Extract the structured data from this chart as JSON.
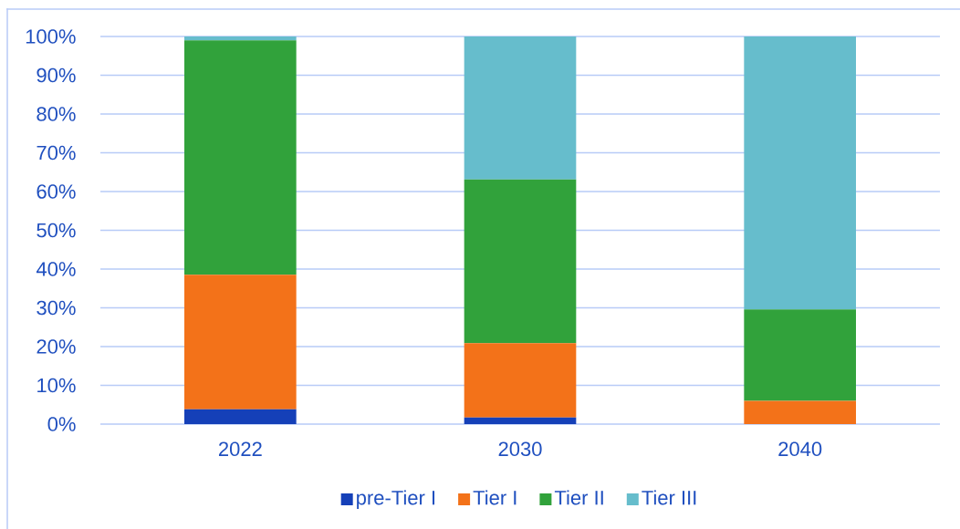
{
  "chart_data": {
    "type": "bar",
    "stacked": true,
    "categories": [
      "2022",
      "2030",
      "2040"
    ],
    "series": [
      {
        "name": "pre-Tier I",
        "color": "#1540b8",
        "values": [
          3.8,
          1.7,
          0
        ]
      },
      {
        "name": "Tier I",
        "color": "#f37219",
        "values": [
          34.7,
          19.2,
          6.0
        ]
      },
      {
        "name": "Tier II",
        "color": "#31a23b",
        "values": [
          60.5,
          42.2,
          23.6
        ]
      },
      {
        "name": "Tier III",
        "color": "#66bdcc",
        "values": [
          1.0,
          36.9,
          70.4
        ]
      }
    ],
    "ylim": [
      0,
      100
    ],
    "yticks": [
      {
        "value": 0,
        "label": "0%"
      },
      {
        "value": 10,
        "label": "10%"
      },
      {
        "value": 20,
        "label": "20%"
      },
      {
        "value": 30,
        "label": "30%"
      },
      {
        "value": 40,
        "label": "40%"
      },
      {
        "value": 50,
        "label": "50%"
      },
      {
        "value": 60,
        "label": "60%"
      },
      {
        "value": 70,
        "label": "70%"
      },
      {
        "value": 80,
        "label": "80%"
      },
      {
        "value": 90,
        "label": "90%"
      },
      {
        "value": 100,
        "label": "100%"
      }
    ],
    "grid": "y",
    "legend": "bottom"
  }
}
